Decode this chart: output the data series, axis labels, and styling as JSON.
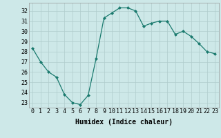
{
  "x": [
    0,
    1,
    2,
    3,
    4,
    5,
    6,
    7,
    8,
    9,
    10,
    11,
    12,
    13,
    14,
    15,
    16,
    17,
    18,
    19,
    20,
    21,
    22,
    23
  ],
  "y": [
    28.3,
    27.0,
    26.0,
    25.5,
    23.8,
    23.0,
    22.8,
    23.7,
    27.3,
    31.3,
    31.8,
    32.3,
    32.3,
    32.0,
    30.5,
    30.8,
    31.0,
    31.0,
    29.7,
    30.0,
    29.5,
    28.8,
    28.0,
    27.8
  ],
  "line_color": "#1a7a6e",
  "marker": "D",
  "marker_size": 2,
  "bg_color": "#cde8e8",
  "grid_color": "#b0cccc",
  "xlabel": "Humidex (Indice chaleur)",
  "ylim": [
    22.5,
    32.8
  ],
  "xlim": [
    -0.5,
    23.5
  ],
  "yticks": [
    23,
    24,
    25,
    26,
    27,
    28,
    29,
    30,
    31,
    32
  ],
  "xticks": [
    0,
    1,
    2,
    3,
    4,
    5,
    6,
    7,
    8,
    9,
    10,
    11,
    12,
    13,
    14,
    15,
    16,
    17,
    18,
    19,
    20,
    21,
    22,
    23
  ],
  "xlabel_fontsize": 7,
  "tick_fontsize": 6
}
